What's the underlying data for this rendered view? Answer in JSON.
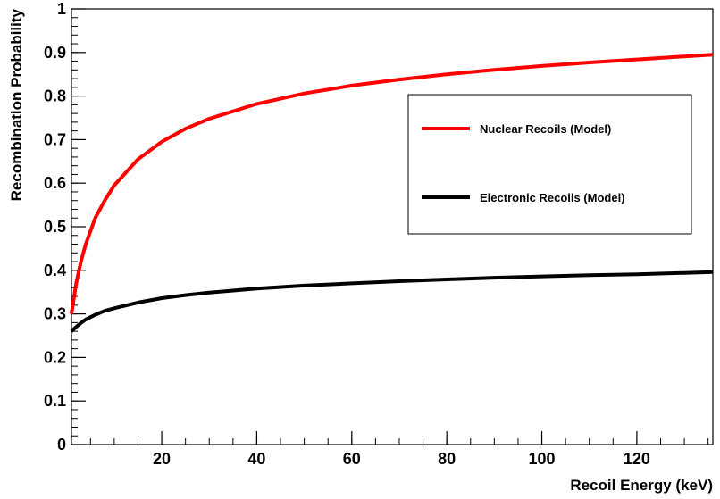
{
  "chart_data": {
    "type": "line",
    "xlabel": "Recoil Energy (keV)",
    "ylabel": "Recombination Probability",
    "xlim": [
      1,
      136
    ],
    "ylim": [
      0,
      1
    ],
    "x_ticks": [
      20,
      40,
      60,
      80,
      100,
      120
    ],
    "x_tick_labels": [
      "20",
      "40",
      "60",
      "80",
      "100",
      "120"
    ],
    "y_ticks": [
      0,
      0.1,
      0.2,
      0.3,
      0.4,
      0.5,
      0.6,
      0.7,
      0.8,
      0.9,
      1
    ],
    "y_tick_labels": [
      "0",
      "0.1",
      "0.2",
      "0.3",
      "0.4",
      "0.5",
      "0.6",
      "0.7",
      "0.8",
      "0.9",
      "1"
    ],
    "grid": false,
    "legend_position": "right",
    "series": [
      {
        "name": "Nuclear Recoils (Model)",
        "color": "#ff0000",
        "x": [
          1,
          2,
          3,
          4,
          6,
          8,
          10,
          15,
          20,
          25,
          30,
          40,
          50,
          60,
          70,
          80,
          90,
          100,
          110,
          120,
          130,
          136
        ],
        "y": [
          0.3,
          0.37,
          0.42,
          0.46,
          0.52,
          0.56,
          0.595,
          0.655,
          0.695,
          0.725,
          0.748,
          0.782,
          0.806,
          0.824,
          0.838,
          0.85,
          0.86,
          0.869,
          0.877,
          0.884,
          0.891,
          0.895
        ]
      },
      {
        "name": "Electronic Recoils (Model)",
        "color": "#000000",
        "x": [
          1,
          2,
          3,
          4,
          6,
          8,
          10,
          15,
          20,
          25,
          30,
          40,
          50,
          60,
          70,
          80,
          90,
          100,
          110,
          120,
          130,
          136
        ],
        "y": [
          0.26,
          0.27,
          0.279,
          0.287,
          0.298,
          0.307,
          0.313,
          0.326,
          0.336,
          0.343,
          0.349,
          0.358,
          0.365,
          0.37,
          0.375,
          0.379,
          0.383,
          0.386,
          0.389,
          0.391,
          0.394,
          0.396
        ]
      }
    ]
  }
}
